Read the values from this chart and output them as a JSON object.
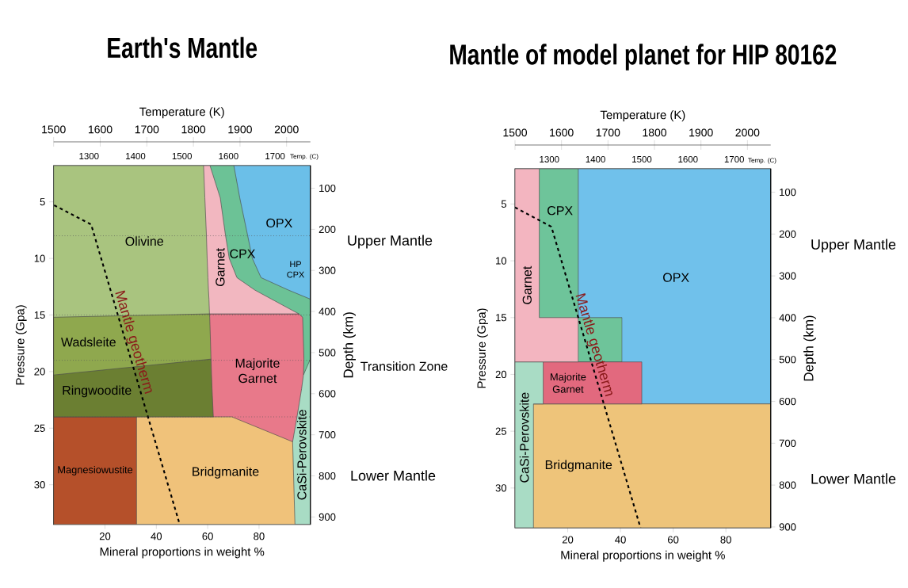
{
  "chart_data": [
    {
      "type": "area",
      "orientation": "horizontal",
      "title": "Earth's Mantle",
      "xlabel": "Mineral proportions in weight %",
      "ylabel": "Pressure (Gpa)",
      "y2label": "Depth (km)",
      "x2label": "Temperature (K)",
      "xlim": [
        0,
        100
      ],
      "xticks": [
        20,
        40,
        60,
        80
      ],
      "ylim": [
        33.5,
        1.8
      ],
      "yticks": [
        5,
        10,
        15,
        20,
        25,
        30
      ],
      "y2lim": [
        918,
        45
      ],
      "y2ticks": [
        100,
        200,
        300,
        400,
        500,
        600,
        700,
        800,
        900
      ],
      "x2lim": [
        1500,
        2051
      ],
      "x2ticks": [
        1500,
        1600,
        1700,
        1800,
        1900,
        2000
      ],
      "x": [
        1.8,
        4.65,
        7.9,
        10.0,
        11.7,
        12.8,
        13.6,
        14.9,
        15.2,
        18.9,
        20.3,
        21.5,
        24.0,
        24.0,
        26.2,
        33.5
      ],
      "series": [
        {
          "name": "CaSi-Perovskite",
          "color": "#a8dcc4",
          "values": [
            null,
            null,
            null,
            null,
            null,
            null,
            null,
            null,
            null,
            100,
            100,
            100,
            100,
            100,
            100,
            100
          ]
        },
        {
          "name": "OPX",
          "color": "#6bbfe8",
          "values": [
            100,
            100,
            100,
            100,
            100,
            100,
            100,
            null,
            null,
            null,
            null,
            null,
            null,
            null,
            null,
            null
          ]
        },
        {
          "name": "CPX",
          "color": "#6cc296",
          "values": [
            70.2,
            72.5,
            75.5,
            77.4,
            80.8,
            91.5,
            100,
            100,
            100,
            100,
            97.3,
            null,
            null,
            null,
            null,
            null
          ]
        },
        {
          "name": "Majorite Garnet",
          "color": "#e8798a",
          "values": [
            null,
            null,
            null,
            null,
            null,
            null,
            null,
            95.5,
            97.0,
            97.5,
            97.3,
            96.6,
            94.8,
            94.8,
            93.1,
            null
          ]
        },
        {
          "name": "Garnet",
          "color": "#f2b7c0",
          "values": [
            60.9,
            64.9,
            66.9,
            68.4,
            71.4,
            78.4,
            84.9,
            95.5,
            null,
            null,
            null,
            null,
            null,
            null,
            null,
            null
          ]
        },
        {
          "name": "Bridgmanite",
          "color": "#f0c27a",
          "values": [
            null,
            null,
            null,
            null,
            null,
            null,
            null,
            null,
            null,
            null,
            null,
            null,
            null,
            69.4,
            93.1,
            94.0
          ]
        },
        {
          "name": "Magnesiowustite",
          "color": "#b5502a",
          "values": [
            null,
            null,
            null,
            null,
            null,
            null,
            null,
            null,
            null,
            null,
            null,
            null,
            null,
            32.3,
            32.3,
            32.3
          ]
        },
        {
          "name": "Ringwoodite",
          "color": "#6b7f32",
          "values": [
            null,
            null,
            null,
            null,
            null,
            null,
            null,
            null,
            null,
            61.3,
            61.5,
            61.7,
            62.2,
            null,
            null,
            null
          ]
        },
        {
          "name": "Wadsleite",
          "color": "#8fa84e",
          "values": [
            null,
            null,
            null,
            null,
            null,
            null,
            null,
            60.7,
            60.8,
            61.3,
            0,
            null,
            null,
            null,
            null,
            null
          ]
        },
        {
          "name": "Olivine",
          "color": "#a9c47f",
          "values": [
            58.4,
            58.9,
            59.5,
            59.8,
            60.1,
            60.3,
            60.5,
            60.7,
            0,
            null,
            null,
            null,
            null,
            null,
            null,
            null
          ]
        },
        {
          "type": "line",
          "name": "Mantle geotherm",
          "color": "#000000",
          "line_style": "dashed",
          "x": [
            5.3,
            7.0,
            33.5
          ],
          "values": [
            0.2,
            14.6,
            49.1
          ]
        }
      ],
      "ref_lines": [
        {
          "axis": "y",
          "value": 8,
          "color": "#555555",
          "line_style": "dotted"
        },
        {
          "axis": "y",
          "value": 15,
          "color": "#555555",
          "line_style": "dotted"
        },
        {
          "axis": "y",
          "value": 19,
          "color": "#555555",
          "line_style": "dotted"
        },
        {
          "axis": "y",
          "value": 24,
          "color": "#555555",
          "line_style": "dotted"
        }
      ],
      "annotations": [
        "Temp. (C)",
        "HP CPX",
        "Upper Mantle",
        "Transition Zone",
        "Lower Mantle",
        "1300",
        "1400",
        "1500",
        "1600",
        "1700"
      ]
    },
    {
      "type": "area",
      "orientation": "horizontal",
      "title": "Mantle of model planet for HIP 80162",
      "xlabel": "Mineral proportions in weight %",
      "ylabel": "Pressure (Gpa)",
      "y2label": "Depth (km)",
      "x2label": "Temperature (K)",
      "xlim": [
        0,
        97
      ],
      "xticks": [
        20,
        40,
        60,
        80
      ],
      "ylim": [
        33.5,
        1.9
      ],
      "yticks": [
        5,
        10,
        15,
        20,
        25,
        30
      ],
      "y2lim": [
        902,
        44
      ],
      "y2ticks": [
        100,
        200,
        300,
        400,
        500,
        600,
        700,
        800,
        900
      ],
      "x2lim": [
        1500,
        2050
      ],
      "x2ticks": [
        1500,
        1600,
        1700,
        1800,
        1900,
        2000
      ],
      "x": [
        1.9,
        15.0,
        15.0,
        18.9,
        18.9,
        22.6,
        22.6,
        33.5
      ],
      "series": [
        {
          "name": "OPX",
          "color": "#70c1eb",
          "values": [
            97,
            97,
            97,
            97,
            97,
            97,
            null,
            null
          ]
        },
        {
          "name": "Bridgmanite",
          "color": "#eec47a",
          "values": [
            null,
            null,
            null,
            null,
            null,
            null,
            97,
            97
          ]
        },
        {
          "name": "CPX",
          "color": "#6ec49a",
          "values": [
            24.0,
            24.0,
            40.6,
            40.6,
            null,
            null,
            null,
            null
          ]
        },
        {
          "name": "Majorite Garnet",
          "color": "#e2697e",
          "values": [
            null,
            null,
            null,
            null,
            48.1,
            48.1,
            null,
            null
          ]
        },
        {
          "name": "CaSi-Perovskite",
          "color": "#a9dcc5",
          "values": [
            null,
            null,
            null,
            null,
            10.7,
            10.7,
            7.0,
            7.0
          ]
        },
        {
          "name": "Garnet",
          "color": "#f3b5c0",
          "values": [
            9.2,
            9.2,
            24.0,
            24.0,
            null,
            null,
            null,
            null
          ]
        },
        {
          "type": "line",
          "name": "Mantle geotherm",
          "color": "#000000",
          "line_style": "dashed",
          "x": [
            5.3,
            7.0,
            33.5
          ],
          "values": [
            0,
            13.8,
            47.6
          ]
        }
      ],
      "annotations": [
        "Temp. (C)",
        "Upper Mantle",
        "Lower Mantle",
        "1300",
        "1400",
        "1500",
        "1600",
        "1700"
      ]
    }
  ]
}
